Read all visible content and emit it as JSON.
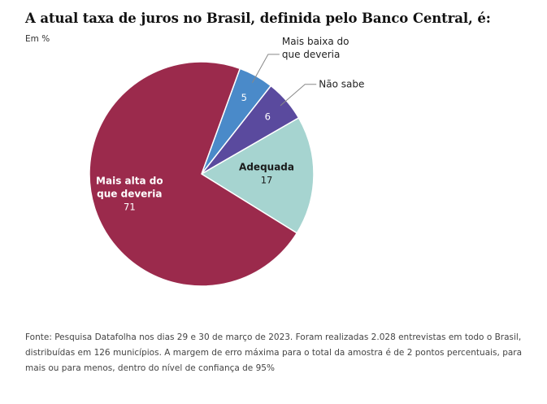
{
  "title": "A atual taxa de juros no Brasil, definida pelo Banco Central, é:",
  "subtitle": "Em %",
  "footer": "Fonte: Pesquisa Datafolha nos dias 29 e 30 de março de 2023. Foram realizadas 2.028 entrevistas em todo o Brasil, distribuídas em 126 municípios. A margem de erro máxima para o total da amostra é de 2 pontos percentuais, para mais ou para menos, dentro do nível de confiança de 95%",
  "chart_data": {
    "type": "pie",
    "title": "A atual taxa de juros no Brasil, definida pelo Banco Central, é:",
    "unit": "Em %",
    "slices": [
      {
        "label": "Mais baixa do que deveria",
        "value": 5,
        "color": "#4a8ac9",
        "label_position": "outside"
      },
      {
        "label": "Não sabe",
        "value": 6,
        "color": "#5a4a9e",
        "label_position": "outside"
      },
      {
        "label": "Adequada",
        "value": 17,
        "color": "#a6d4d0",
        "label_position": "inside"
      },
      {
        "label": "Mais alta do que deveria",
        "value": 71,
        "color": "#9b2a4c",
        "label_position": "inside"
      }
    ]
  }
}
